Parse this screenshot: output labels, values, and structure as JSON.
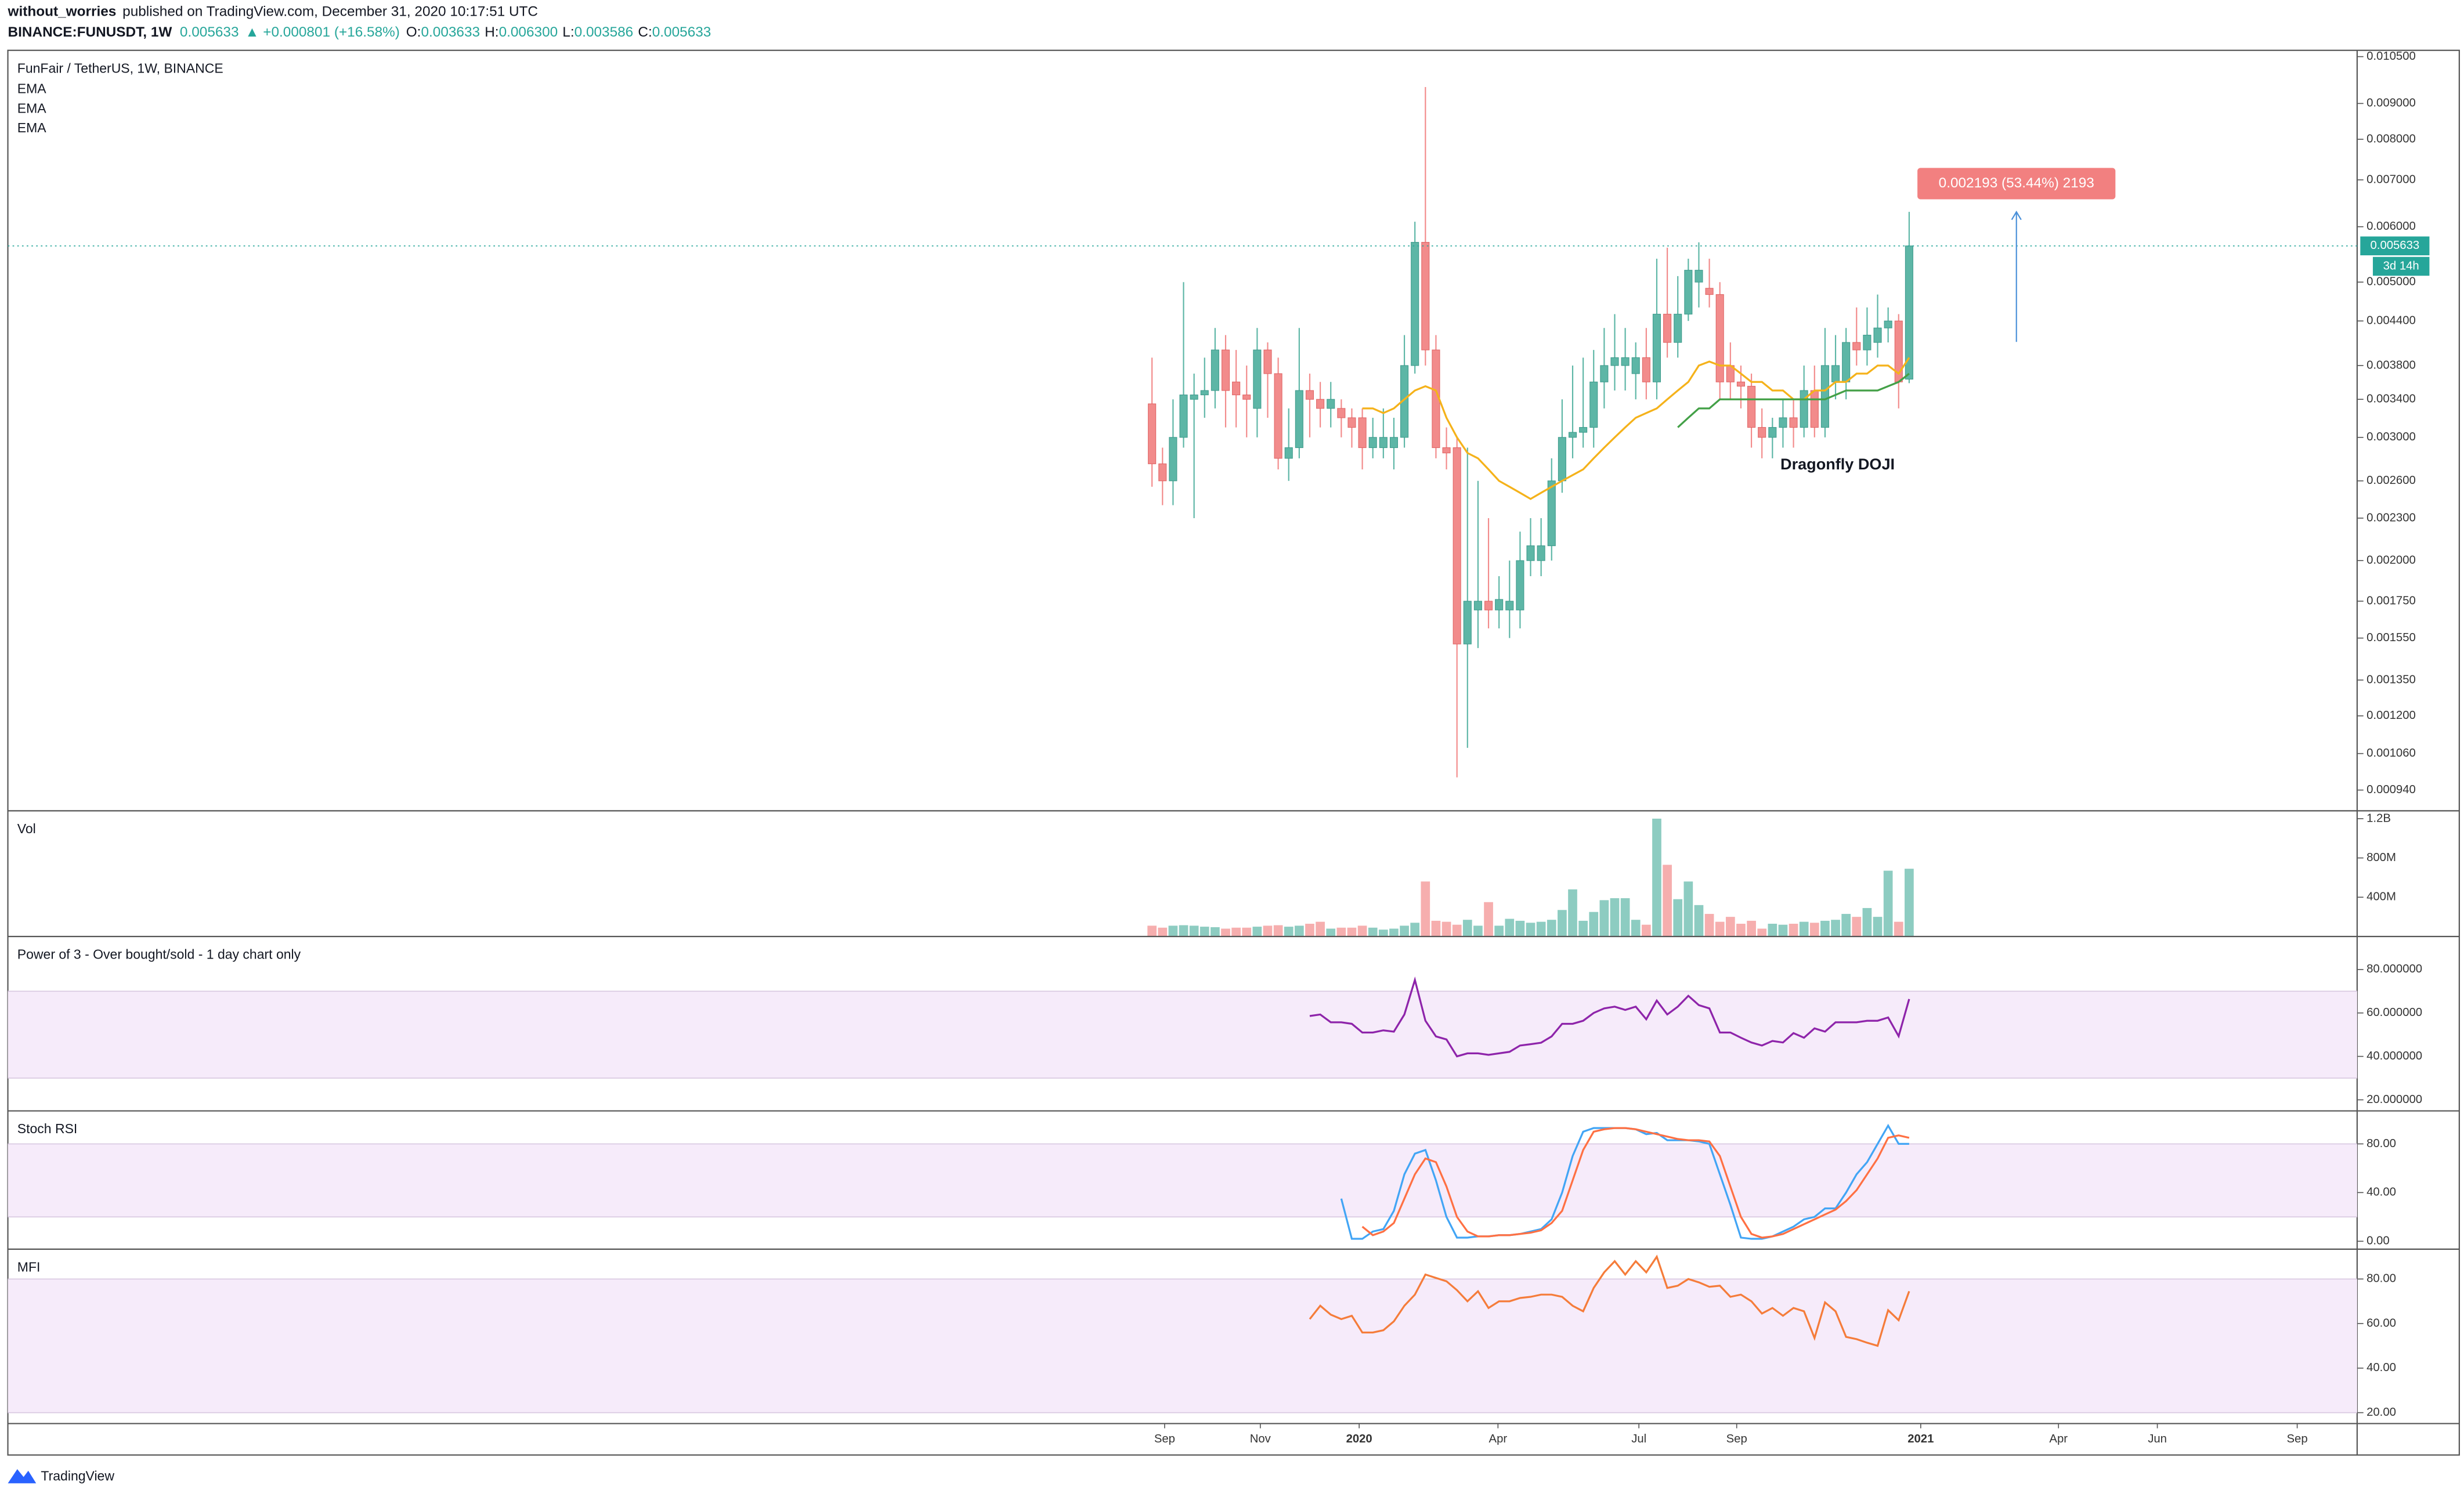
{
  "header": {
    "author": "without_worries",
    "published": "published on TradingView.com, December 31, 2020 10:17:51 UTC",
    "symbol": "BINANCE:FUNUSDT, 1W",
    "last": "0.005633",
    "change": "▲ +0.000801 (+16.58%)",
    "ohlc": [
      {
        "label": "O:",
        "value": "0.003633"
      },
      {
        "label": "H:",
        "value": "0.006300"
      },
      {
        "label": "L:",
        "value": "0.003586"
      },
      {
        "label": "C:",
        "value": "0.005633"
      }
    ]
  },
  "footer": "TradingView",
  "chart_data": [
    {
      "type": "candlestick",
      "title": "FunFair / TetherUS, 1W, BINANCE",
      "indicator_labels": [
        "EMA",
        "EMA",
        "EMA"
      ],
      "log_scale": true,
      "ylim": [
        0.000878,
        0.01072
      ],
      "yticks": [
        {
          "value": 0.0105,
          "label": "0.010500"
        },
        {
          "value": 0.009,
          "label": "0.009000"
        },
        {
          "value": 0.008,
          "label": "0.008000"
        },
        {
          "value": 0.007,
          "label": "0.007000"
        },
        {
          "value": 0.006,
          "label": "0.006000"
        },
        {
          "value": 0.005,
          "label": "0.005000"
        },
        {
          "value": 0.0044,
          "label": "0.004400"
        },
        {
          "value": 0.0038,
          "label": "0.003800"
        },
        {
          "value": 0.0034,
          "label": "0.003400"
        },
        {
          "value": 0.003,
          "label": "0.003000"
        },
        {
          "value": 0.0026,
          "label": "0.002600"
        },
        {
          "value": 0.0023,
          "label": "0.002300"
        },
        {
          "value": 0.002,
          "label": "0.002000"
        },
        {
          "value": 0.00175,
          "label": "0.001750"
        },
        {
          "value": 0.00155,
          "label": "0.001550"
        },
        {
          "value": 0.00135,
          "label": "0.001350"
        },
        {
          "value": 0.0012,
          "label": "0.001200"
        },
        {
          "value": 0.00106,
          "label": "0.001060"
        },
        {
          "value": 0.00094,
          "label": "0.000940"
        }
      ],
      "xlim": [
        -108.8,
        114.6
      ],
      "xticks": [
        {
          "value": 1.2,
          "label": "Sep"
        },
        {
          "value": 10.3,
          "label": "Nov"
        },
        {
          "value": 19.7,
          "label": "2020"
        },
        {
          "value": 32.9,
          "label": "Apr"
        },
        {
          "value": 46.3,
          "label": "Jul"
        },
        {
          "value": 55.6,
          "label": "Sep"
        },
        {
          "value": 73.1,
          "label": "2021"
        },
        {
          "value": 86.2,
          "label": "Apr"
        },
        {
          "value": 95.6,
          "label": "Jun"
        },
        {
          "value": 108.9,
          "label": "Sep"
        }
      ],
      "up_color": "#5db6a6",
      "down_color": "#f28b8b",
      "open": [
        0.00335,
        0.00275,
        0.0026,
        0.003,
        0.0034,
        0.00345,
        0.0035,
        0.004,
        0.0036,
        0.00345,
        0.0033,
        0.004,
        0.0037,
        0.0028,
        0.0029,
        0.0035,
        0.0034,
        0.0033,
        0.0033,
        0.0032,
        0.0032,
        0.0029,
        0.0029,
        0.0029,
        0.003,
        0.0038,
        0.0057,
        0.004,
        0.0029,
        0.0029,
        0.00152,
        0.0017,
        0.00175,
        0.0017,
        0.0017,
        0.0017,
        0.002,
        0.002,
        0.0021,
        0.0026,
        0.003,
        0.00305,
        0.0031,
        0.0036,
        0.0038,
        0.0038,
        0.0037,
        0.0039,
        0.0036,
        0.0045,
        0.0041,
        0.0045,
        0.005,
        0.0049,
        0.0048,
        0.0038,
        0.0036,
        0.00355,
        0.0031,
        0.003,
        0.0031,
        0.0032,
        0.0031,
        0.0035,
        0.0031,
        0.0036,
        0.0036,
        0.0041,
        0.004,
        0.0041,
        0.0043,
        0.0044,
        0.003633
      ],
      "high": [
        0.0039,
        0.0029,
        0.0034,
        0.005,
        0.0037,
        0.0039,
        0.0043,
        0.0042,
        0.004,
        0.0038,
        0.0043,
        0.0041,
        0.0039,
        0.0033,
        0.0043,
        0.0037,
        0.0036,
        0.0036,
        0.0034,
        0.0033,
        0.0033,
        0.0032,
        0.0033,
        0.0032,
        0.0042,
        0.0061,
        0.0095,
        0.0042,
        0.0031,
        0.003,
        0.0029,
        0.0026,
        0.0023,
        0.0019,
        0.002,
        0.0022,
        0.0023,
        0.0023,
        0.0028,
        0.0034,
        0.0038,
        0.0039,
        0.004,
        0.0043,
        0.0045,
        0.0043,
        0.0041,
        0.0043,
        0.0054,
        0.0056,
        0.0051,
        0.0054,
        0.0057,
        0.0054,
        0.005,
        0.0041,
        0.0038,
        0.0037,
        0.0033,
        0.0032,
        0.0034,
        0.0034,
        0.0038,
        0.0038,
        0.0043,
        0.0042,
        0.0043,
        0.0046,
        0.0046,
        0.0048,
        0.0046,
        0.0045,
        0.0063
      ],
      "low": [
        0.00255,
        0.0024,
        0.0024,
        0.0029,
        0.0023,
        0.0032,
        0.0033,
        0.0031,
        0.0031,
        0.003,
        0.003,
        0.0032,
        0.0027,
        0.0026,
        0.0028,
        0.003,
        0.0031,
        0.0031,
        0.003,
        0.0029,
        0.0027,
        0.0028,
        0.0028,
        0.0027,
        0.0029,
        0.0037,
        0.0038,
        0.0028,
        0.0027,
        0.00098,
        0.00108,
        0.0015,
        0.0016,
        0.0016,
        0.00155,
        0.0016,
        0.0019,
        0.0019,
        0.002,
        0.0025,
        0.0028,
        0.0029,
        0.0029,
        0.0033,
        0.0035,
        0.0035,
        0.0034,
        0.0034,
        0.0034,
        0.0039,
        0.0039,
        0.0044,
        0.0046,
        0.0046,
        0.0034,
        0.0034,
        0.0033,
        0.0029,
        0.0028,
        0.0028,
        0.0029,
        0.0029,
        0.003,
        0.003,
        0.003,
        0.0034,
        0.0034,
        0.0038,
        0.0038,
        0.0039,
        0.0041,
        0.0033,
        0.003586
      ],
      "close": [
        0.00275,
        0.0026,
        0.003,
        0.00345,
        0.00345,
        0.0035,
        0.004,
        0.0035,
        0.00345,
        0.0034,
        0.004,
        0.0037,
        0.0028,
        0.0029,
        0.0035,
        0.0034,
        0.0033,
        0.0034,
        0.0032,
        0.0031,
        0.0029,
        0.003,
        0.003,
        0.003,
        0.0038,
        0.0057,
        0.004,
        0.0029,
        0.00285,
        0.00152,
        0.00175,
        0.00175,
        0.0017,
        0.00176,
        0.00175,
        0.002,
        0.0021,
        0.0021,
        0.0026,
        0.003,
        0.00305,
        0.0031,
        0.0036,
        0.0038,
        0.0039,
        0.0039,
        0.0039,
        0.0036,
        0.0045,
        0.0041,
        0.0045,
        0.0052,
        0.0052,
        0.0048,
        0.0036,
        0.0036,
        0.00355,
        0.0031,
        0.003,
        0.0031,
        0.0032,
        0.0031,
        0.0035,
        0.0031,
        0.0038,
        0.0038,
        0.0041,
        0.004,
        0.0042,
        0.0043,
        0.0044,
        0.0036,
        0.005633
      ],
      "series": [
        {
          "color": "#f5b21a",
          "values": [
            null,
            null,
            null,
            null,
            null,
            null,
            null,
            null,
            null,
            null,
            null,
            null,
            null,
            null,
            null,
            null,
            null,
            null,
            null,
            null,
            0.0033,
            0.0033,
            0.00325,
            0.0033,
            0.0034,
            0.0035,
            0.00355,
            0.0035,
            0.0032,
            0.003,
            0.00285,
            0.0028,
            0.0027,
            0.0026,
            0.00255,
            0.0025,
            0.00245,
            0.0025,
            0.00255,
            0.0026,
            0.00265,
            0.0027,
            0.0028,
            0.0029,
            0.003,
            0.0031,
            0.0032,
            0.00325,
            0.0033,
            0.0034,
            0.0035,
            0.0036,
            0.0038,
            0.00385,
            0.0038,
            0.0038,
            0.0037,
            0.0036,
            0.0036,
            0.0035,
            0.0035,
            0.0034,
            0.0034,
            0.0035,
            0.0035,
            0.0036,
            0.0036,
            0.0037,
            0.0037,
            0.0038,
            0.0038,
            0.0037,
            0.0039
          ]
        },
        {
          "color": "#43a047",
          "values": [
            null,
            null,
            null,
            null,
            null,
            null,
            null,
            null,
            null,
            null,
            null,
            null,
            null,
            null,
            null,
            null,
            null,
            null,
            null,
            null,
            null,
            null,
            null,
            null,
            null,
            null,
            null,
            null,
            null,
            null,
            null,
            null,
            null,
            null,
            null,
            null,
            null,
            null,
            null,
            null,
            null,
            null,
            null,
            null,
            null,
            null,
            null,
            null,
            null,
            null,
            0.0031,
            0.0032,
            0.0033,
            0.0033,
            0.0034,
            0.0034,
            0.0034,
            0.0034,
            0.0034,
            0.0034,
            0.0034,
            0.0034,
            0.0034,
            0.0034,
            0.0034,
            0.00345,
            0.0035,
            0.0035,
            0.0035,
            0.0035,
            0.00355,
            0.0036,
            0.0037
          ]
        }
      ],
      "last_price": {
        "value": 0.005633,
        "label": "0.005633"
      },
      "countdown": "3d 14h",
      "measure": {
        "label": "0.002193 (53.44%) 2193",
        "x": 82.2,
        "from": 0.004107,
        "to": 0.0063
      },
      "annotation": "Dragonfly DOJI"
    },
    {
      "type": "volume",
      "title": "Vol",
      "ylim": [
        0,
        1280
      ],
      "yticks": [
        {
          "value": 400,
          "label": "400M"
        },
        {
          "value": 800,
          "label": "800M"
        },
        {
          "value": 1200,
          "label": "1.2B"
        }
      ],
      "values": [
        110,
        90,
        110,
        115,
        110,
        100,
        95,
        80,
        90,
        90,
        100,
        110,
        115,
        100,
        110,
        130,
        150,
        80,
        90,
        90,
        110,
        90,
        70,
        80,
        110,
        140,
        560,
        160,
        150,
        120,
        170,
        110,
        350,
        110,
        180,
        160,
        140,
        150,
        170,
        270,
        480,
        160,
        250,
        370,
        390,
        390,
        170,
        120,
        1200,
        730,
        380,
        560,
        320,
        230,
        150,
        200,
        130,
        160,
        80,
        130,
        120,
        130,
        150,
        140,
        160,
        170,
        230,
        200,
        290,
        200,
        670,
        150,
        690
      ]
    },
    {
      "type": "line",
      "title": "Power of 3 - Over bought/sold - 1 day chart only",
      "ylim": [
        14.9,
        95.2
      ],
      "yticks": [
        {
          "value": 20,
          "label": "20.000000"
        },
        {
          "value": 40,
          "label": "40.000000"
        },
        {
          "value": 60,
          "label": "60.000000"
        },
        {
          "value": 80,
          "label": "80.000000"
        }
      ],
      "band": [
        30,
        70
      ],
      "band_color": "#f6ebfa",
      "series": [
        {
          "color": "#8e24aa",
          "values": [
            null,
            null,
            null,
            null,
            null,
            null,
            null,
            null,
            null,
            null,
            null,
            null,
            null,
            null,
            null,
            58.6,
            59.3,
            55.7,
            55.7,
            55,
            51,
            51,
            52,
            51.4,
            59.3,
            75.2,
            56.4,
            49.2,
            47.8,
            40,
            41.4,
            41.4,
            40.7,
            41.4,
            42.1,
            45,
            45.6,
            46.3,
            49.2,
            55,
            55,
            56.4,
            60,
            62.1,
            62.9,
            61.4,
            62.9,
            57.1,
            65.7,
            59.3,
            62.9,
            67.9,
            63.6,
            62.1,
            51,
            51,
            48.6,
            46.4,
            45,
            47.1,
            46.4,
            50.7,
            48.6,
            52.9,
            51.4,
            55.7,
            55.7,
            55.7,
            56.4,
            56.4,
            57.9,
            49.3,
            66.4
          ]
        }
      ]
    },
    {
      "type": "line",
      "title": "Stoch RSI",
      "ylim": [
        -6.5,
        107.1
      ],
      "yticks": [
        {
          "value": 0,
          "label": "0.00"
        },
        {
          "value": 40,
          "label": "40.00"
        },
        {
          "value": 80,
          "label": "80.00"
        }
      ],
      "band": [
        20,
        80
      ],
      "band_color": "#f6ebfa",
      "series": [
        {
          "color": "#42a5f5",
          "values": [
            null,
            null,
            null,
            null,
            null,
            null,
            null,
            null,
            null,
            null,
            null,
            null,
            null,
            null,
            null,
            null,
            null,
            null,
            35,
            2,
            2,
            8,
            10,
            25,
            55,
            72,
            75,
            50,
            20,
            3,
            3,
            4,
            4,
            5,
            5,
            6,
            8,
            10,
            18,
            40,
            70,
            90,
            93,
            93,
            93,
            93,
            92,
            88,
            89,
            83,
            83,
            83,
            82,
            80,
            55,
            30,
            3,
            2,
            2,
            4,
            8,
            12,
            18,
            20,
            27,
            27,
            40,
            55,
            65,
            80,
            95,
            80,
            80
          ]
        },
        {
          "color": "#ff7043",
          "values": [
            null,
            null,
            null,
            null,
            null,
            null,
            null,
            null,
            null,
            null,
            null,
            null,
            null,
            null,
            null,
            null,
            null,
            null,
            null,
            null,
            12,
            5,
            8,
            15,
            35,
            55,
            68,
            65,
            45,
            20,
            8,
            4,
            4,
            5,
            5,
            6,
            7,
            9,
            15,
            25,
            50,
            75,
            90,
            92,
            93,
            93,
            92,
            90,
            88,
            86,
            84,
            83,
            83,
            82,
            70,
            45,
            20,
            6,
            3,
            4,
            6,
            10,
            14,
            18,
            22,
            26,
            33,
            42,
            55,
            68,
            85,
            87,
            85
          ]
        }
      ]
    },
    {
      "type": "line",
      "title": "MFI",
      "ylim": [
        15.1,
        93.4
      ],
      "yticks": [
        {
          "value": 20,
          "label": "20.00"
        },
        {
          "value": 40,
          "label": "40.00"
        },
        {
          "value": 60,
          "label": "60.00"
        },
        {
          "value": 80,
          "label": "80.00"
        }
      ],
      "band": [
        20,
        80
      ],
      "band_color": "#f6ebfa",
      "series": [
        {
          "color": "#f57c3a",
          "values": [
            null,
            null,
            null,
            null,
            null,
            null,
            null,
            null,
            null,
            null,
            null,
            null,
            null,
            null,
            null,
            62,
            68,
            64,
            62,
            63.5,
            56,
            56,
            57,
            61,
            68,
            73,
            82,
            80.5,
            79,
            75,
            70,
            74.5,
            67,
            70,
            70,
            71.5,
            72,
            73,
            73,
            72,
            68,
            65.5,
            76,
            83,
            88,
            82,
            88,
            83,
            90,
            76,
            77,
            80,
            78.5,
            76.5,
            77,
            72,
            73,
            70,
            64.5,
            67,
            63.5,
            67,
            65.5,
            53.5,
            69.5,
            65.5,
            54,
            53,
            51.4,
            50,
            66,
            61.5,
            74.5
          ]
        }
      ]
    }
  ]
}
